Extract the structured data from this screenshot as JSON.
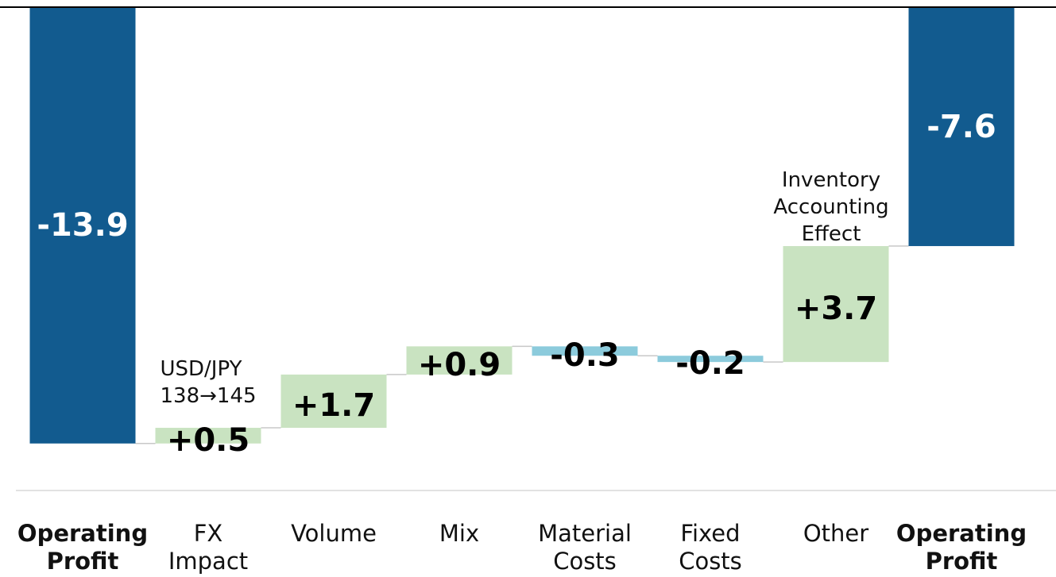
{
  "chart_data": {
    "type": "waterfall",
    "categories": [
      "Operating Profit",
      "FX Impact",
      "Volume",
      "Mix",
      "Material Costs",
      "Fixed Costs",
      "Other",
      "Operating Profit"
    ],
    "measure": [
      "total",
      "relative",
      "relative",
      "relative",
      "relative",
      "relative",
      "relative",
      "total"
    ],
    "values": [
      -13.9,
      0.5,
      1.7,
      0.9,
      -0.3,
      -0.2,
      3.7,
      -7.6
    ],
    "value_labels": [
      "-13.9",
      "+0.5",
      "+1.7",
      "+0.9",
      "-0.3",
      "-0.2",
      "+3.7",
      "-7.6"
    ],
    "annotations": [
      "USD/JPY 138→145",
      "Inventory Accounting Effect"
    ],
    "colors": {
      "total": "#125b8f",
      "increase": "#c9e3c1",
      "decrease": "#8ccbdc"
    },
    "ylim": [
      -15.4,
      0
    ]
  }
}
